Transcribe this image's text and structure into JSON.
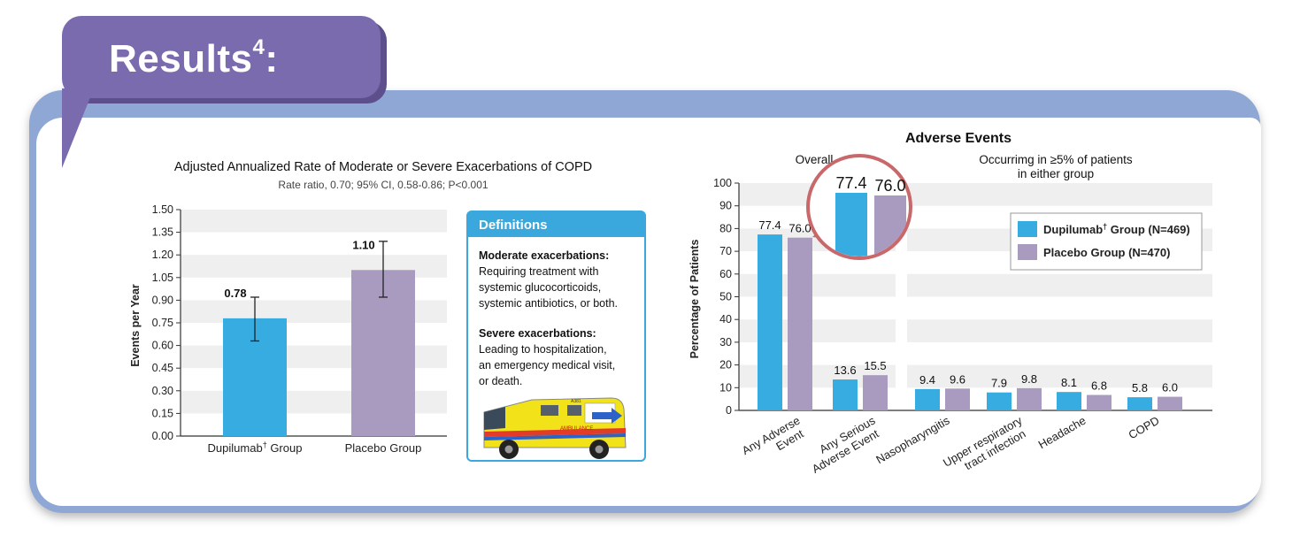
{
  "header": {
    "title": "Results",
    "superscript": "4",
    "colon": ":"
  },
  "colors": {
    "dupilumab": "#36ace0",
    "placebo": "#a89bbf",
    "accent": "#3aa8dc",
    "tab": "#7a6aae",
    "frame": "#8ea7d4",
    "magnifier": "#c9686a"
  },
  "chart_data": [
    {
      "type": "bar",
      "title": "Adjusted Annualized Rate of Moderate or Severe Exacerbations of COPD",
      "subtitle": "Rate ratio, 0.70; 95% CI, 0.58-0.86; P<0.001",
      "ylabel": "Events per Year",
      "ylim": [
        0,
        1.5
      ],
      "yticks": [
        "0.00",
        "0.15",
        "0.30",
        "0.45",
        "0.60",
        "0.75",
        "0.90",
        "1.05",
        "1.20",
        "1.35",
        "1.50"
      ],
      "grid": "alternating horizontal bands",
      "categories": [
        {
          "label": "Dupilumab",
          "sup": "†",
          "label_suffix": " Group"
        },
        {
          "label": "Placebo Group",
          "sup": "",
          "label_suffix": ""
        }
      ],
      "values": [
        0.78,
        1.1
      ],
      "value_labels": [
        "0.78",
        "1.10"
      ],
      "error_bars": [
        [
          0.63,
          0.92
        ],
        [
          0.92,
          1.29
        ]
      ]
    },
    {
      "type": "bar",
      "title": "Adverse Events",
      "ylabel": "Percentage of Patients",
      "ylim": [
        0,
        100
      ],
      "yticks": [
        "0",
        "10",
        "20",
        "30",
        "40",
        "50",
        "60",
        "70",
        "80",
        "90",
        "100"
      ],
      "grid": "alternating horizontal bands",
      "group_labels": [
        {
          "text": "Overall",
          "line2": ""
        },
        {
          "text": "Occurrimg in ≥5% of patients",
          "line2": "in either group"
        }
      ],
      "categories": [
        [
          "Any Adverse",
          "Event"
        ],
        [
          "Any Serious",
          "Adverse Event"
        ],
        [
          "Nasopharyngitis"
        ],
        [
          "Upper respiratory",
          "tract infection"
        ],
        [
          "Headache"
        ],
        [
          "COPD"
        ]
      ],
      "series": [
        {
          "name": "Dupilumab† Group (N=469)",
          "values": [
            77.4,
            13.6,
            9.4,
            7.9,
            8.1,
            5.8
          ],
          "labels": [
            "77.4",
            "13.6",
            "9.4",
            "7.9",
            "8.1",
            "5.8"
          ]
        },
        {
          "name": "Placebo Group (N=470)",
          "values": [
            76.0,
            15.5,
            9.6,
            9.8,
            6.8,
            6.0
          ],
          "labels": [
            "76.0",
            "15.5",
            "9.6",
            "9.8",
            "6.8",
            "6.0"
          ]
        }
      ],
      "legend": {
        "placement": "top-right",
        "entries": [
          {
            "name": "Dupilumab",
            "sup": "†",
            "suffix": " Group (N=469)"
          },
          {
            "name": "Placebo Group (N=470)",
            "sup": "",
            "suffix": ""
          }
        ]
      },
      "magnifier": {
        "labels": [
          "77.4",
          "76.0"
        ]
      }
    }
  ],
  "definitions": {
    "heading": "Definitions",
    "items": [
      {
        "term": "Moderate exacerbations:",
        "lines": [
          "Requiring treatment with",
          "systemic glucocorticoids,",
          "systemic antibiotics, or both."
        ]
      },
      {
        "term": "Severe exacerbations:",
        "lines": [
          "Leading to hospitalization,",
          "an emergency medical visit,",
          "or death."
        ]
      }
    ],
    "ambulance_text": "AMBULANCE",
    "ambulance_id": "A381"
  }
}
